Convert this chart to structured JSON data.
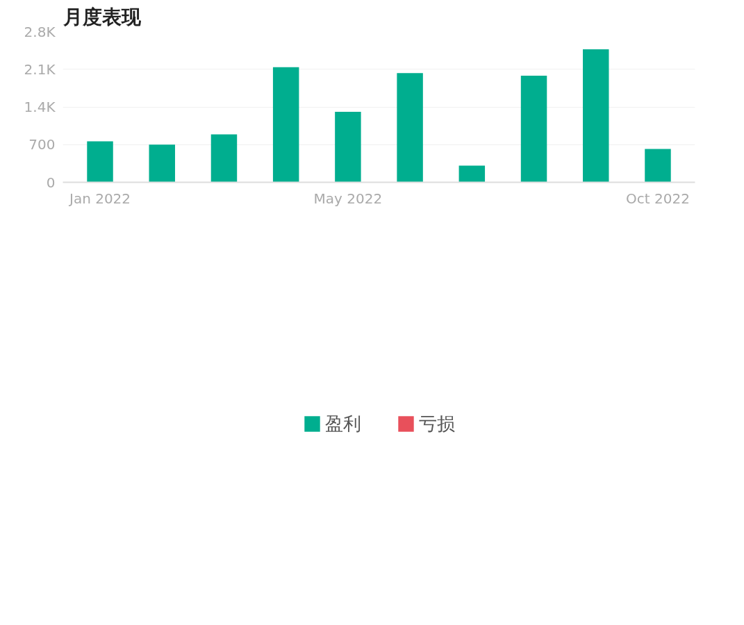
{
  "chart_data": {
    "type": "bar",
    "title": "月度表现",
    "categories": [
      "Jan 2022",
      null,
      null,
      null,
      "May 2022",
      null,
      null,
      null,
      null,
      "Oct 2022"
    ],
    "series": [
      {
        "name": "盈利",
        "color": "#00ae8f",
        "values": [
          760,
          700,
          890,
          2140,
          1310,
          2030,
          310,
          1980,
          2470,
          620
        ]
      },
      {
        "name": "亏损",
        "color": "#e8505b",
        "values": [
          null,
          null,
          null,
          null,
          null,
          null,
          null,
          null,
          null,
          null
        ]
      }
    ],
    "ylim": [
      0,
      2800
    ],
    "yticks": [
      0,
      700,
      {
        "value": 1400,
        "label": "1.4K"
      },
      {
        "value": 2100,
        "label": "2.1K"
      },
      {
        "value": 2800,
        "label": "2.8K"
      }
    ],
    "grid": "y",
    "legend": "bottom"
  }
}
